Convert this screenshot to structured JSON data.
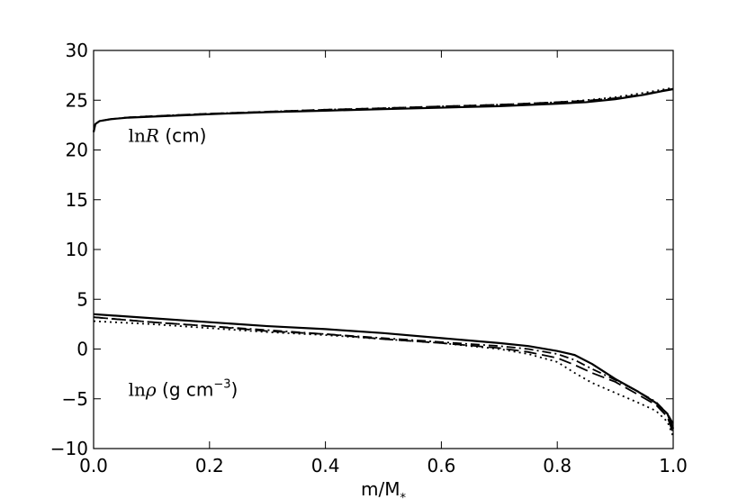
{
  "chart_data": {
    "type": "line",
    "title": "",
    "xlabel": "m/M",
    "xlabel_subscript": "*",
    "ylabel": "",
    "xlim": [
      0.0,
      1.0
    ],
    "ylim": [
      -10,
      30
    ],
    "grid": false,
    "x_ticks": [
      "0.0",
      "0.2",
      "0.4",
      "0.6",
      "0.8",
      "1.0"
    ],
    "y_ticks": [
      "30",
      "25",
      "20",
      "15",
      "10",
      "5",
      "0",
      "−5",
      "−10"
    ],
    "annotations": [
      {
        "math": "ln",
        "var": "R",
        "unit": " (cm)",
        "x": 0.06,
        "y": 20.8
      },
      {
        "math": "ln",
        "var": "ρ",
        "unit": " (g cm",
        "exp": "−3",
        "close": ")",
        "x": 0.06,
        "y": -4.7
      }
    ],
    "series": [
      {
        "style": "solid",
        "group": "lnR",
        "x": [
          0.0,
          0.003,
          0.01,
          0.03,
          0.06,
          0.1,
          0.2,
          0.3,
          0.4,
          0.5,
          0.6,
          0.7,
          0.8,
          0.85,
          0.9,
          0.95,
          0.98,
          1.0
        ],
        "values": [
          21.8,
          22.6,
          22.9,
          23.1,
          23.25,
          23.35,
          23.6,
          23.8,
          23.95,
          24.1,
          24.25,
          24.4,
          24.65,
          24.8,
          25.1,
          25.55,
          25.9,
          26.1
        ]
      },
      {
        "style": "dashed",
        "group": "lnR",
        "x": [
          0.0,
          0.003,
          0.01,
          0.03,
          0.06,
          0.1,
          0.2,
          0.3,
          0.4,
          0.5,
          0.6,
          0.7,
          0.8,
          0.85,
          0.9,
          0.95,
          0.98,
          1.0
        ],
        "values": [
          21.8,
          22.6,
          22.9,
          23.1,
          23.28,
          23.4,
          23.65,
          23.85,
          24.05,
          24.2,
          24.38,
          24.55,
          24.8,
          24.95,
          25.2,
          25.6,
          25.95,
          26.15
        ]
      },
      {
        "style": "dotted",
        "group": "lnR",
        "x": [
          0.0,
          0.003,
          0.01,
          0.03,
          0.06,
          0.1,
          0.2,
          0.3,
          0.4,
          0.5,
          0.6,
          0.7,
          0.8,
          0.85,
          0.9,
          0.95,
          0.98,
          1.0
        ],
        "values": [
          21.8,
          22.6,
          22.9,
          23.1,
          23.28,
          23.4,
          23.65,
          23.85,
          24.05,
          24.2,
          24.38,
          24.55,
          24.8,
          25.0,
          25.3,
          25.75,
          26.05,
          26.25
        ]
      },
      {
        "style": "solid",
        "group": "lnrho",
        "x": [
          0.0,
          0.1,
          0.2,
          0.3,
          0.4,
          0.5,
          0.6,
          0.7,
          0.75,
          0.8,
          0.83,
          0.86,
          0.9,
          0.94,
          0.97,
          0.99,
          1.0
        ],
        "values": [
          3.5,
          3.1,
          2.7,
          2.3,
          2.0,
          1.6,
          1.1,
          0.6,
          0.3,
          -0.2,
          -0.6,
          -1.5,
          -3.0,
          -4.3,
          -5.4,
          -6.5,
          -8.0
        ]
      },
      {
        "style": "dashed",
        "group": "lnrho",
        "x": [
          0.0,
          0.1,
          0.2,
          0.3,
          0.4,
          0.5,
          0.6,
          0.7,
          0.75,
          0.8,
          0.83,
          0.86,
          0.9,
          0.94,
          0.97,
          0.99,
          1.0
        ],
        "values": [
          3.2,
          2.7,
          2.3,
          1.8,
          1.5,
          1.0,
          0.6,
          0.1,
          -0.3,
          -0.9,
          -1.6,
          -2.4,
          -3.3,
          -4.6,
          -5.6,
          -6.8,
          -8.5
        ]
      },
      {
        "style": "dashdot",
        "group": "lnrho",
        "x": [
          0.0,
          0.1,
          0.2,
          0.3,
          0.4,
          0.5,
          0.6,
          0.7,
          0.75,
          0.8,
          0.83,
          0.86,
          0.9,
          0.94,
          0.97,
          0.99,
          1.0
        ],
        "values": [
          3.2,
          2.7,
          2.3,
          1.9,
          1.5,
          1.1,
          0.7,
          0.3,
          0.0,
          -0.5,
          -1.1,
          -2.0,
          -3.1,
          -4.3,
          -5.3,
          -6.5,
          -7.5
        ]
      },
      {
        "style": "dotted",
        "group": "lnrho",
        "x": [
          0.0,
          0.1,
          0.2,
          0.3,
          0.4,
          0.5,
          0.6,
          0.7,
          0.75,
          0.8,
          0.83,
          0.86,
          0.9,
          0.94,
          0.97,
          0.99,
          1.0
        ],
        "values": [
          2.8,
          2.5,
          2.1,
          1.7,
          1.4,
          1.0,
          0.6,
          0.0,
          -0.5,
          -1.3,
          -2.4,
          -3.4,
          -4.4,
          -5.4,
          -6.2,
          -7.3,
          -8.8
        ]
      }
    ]
  }
}
